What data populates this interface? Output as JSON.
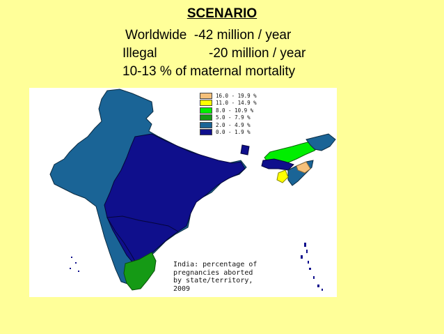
{
  "heading": {
    "title": "SCENARIO",
    "line1": "Worldwide  -42 million / year",
    "line2_label": "Illegal",
    "line2_value": "-20 million / year",
    "line3": "10-13 % of maternal mortality"
  },
  "map": {
    "legend": [
      {
        "label": "16.0 - 19.9 %",
        "color": "#f5c07a"
      },
      {
        "label": "11.0 - 14.9 %",
        "color": "#ffff00"
      },
      {
        "label": "8.0 - 10.9 %",
        "color": "#00ee00"
      },
      {
        "label": "5.0 -  7.9 %",
        "color": "#159a15"
      },
      {
        "label": "2.0 -  4.9 %",
        "color": "#1a6496"
      },
      {
        "label": "0.0 -  1.9 %",
        "color": "#0f0f8c"
      }
    ],
    "caption_line1": "India:  percentage of",
    "caption_line2": "pregnancies aborted",
    "caption_line3": "by state/territory,",
    "caption_line4": "2009"
  }
}
